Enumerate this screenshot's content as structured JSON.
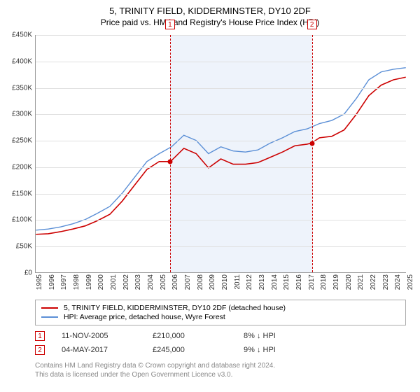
{
  "title_line1": "5, TRINITY FIELD, KIDDERMINSTER, DY10 2DF",
  "title_line2": "Price paid vs. HM Land Registry's House Price Index (HPI)",
  "chart": {
    "type": "line",
    "background_color": "#ffffff",
    "grid_color": "#e0e0e0",
    "axis_color": "#999999",
    "band_color": "#eef3fb",
    "ylim": [
      0,
      450000
    ],
    "ytick_step": 50000,
    "ylabels": [
      "£0",
      "£50K",
      "£100K",
      "£150K",
      "£200K",
      "£250K",
      "£300K",
      "£350K",
      "£400K",
      "£450K"
    ],
    "xlim": [
      1995,
      2025
    ],
    "xtick_step": 1,
    "xlabels": [
      "1995",
      "1996",
      "1997",
      "1998",
      "1999",
      "2000",
      "2001",
      "2002",
      "2003",
      "2004",
      "2005",
      "2006",
      "2007",
      "2008",
      "2009",
      "2010",
      "2011",
      "2012",
      "2013",
      "2014",
      "2015",
      "2016",
      "2017",
      "2018",
      "2019",
      "2020",
      "2021",
      "2022",
      "2023",
      "2024",
      "2025"
    ],
    "band_ranges": [
      [
        2005.86,
        2017.34
      ]
    ],
    "series": [
      {
        "name": "property",
        "label": "5, TRINITY FIELD, KIDDERMINSTER, DY10 2DF (detached house)",
        "color": "#cc0000",
        "line_width": 1.6,
        "points": [
          [
            1995,
            72000
          ],
          [
            1996,
            73000
          ],
          [
            1997,
            77000
          ],
          [
            1998,
            82000
          ],
          [
            1999,
            88000
          ],
          [
            2000,
            98000
          ],
          [
            2001,
            110000
          ],
          [
            2002,
            135000
          ],
          [
            2003,
            165000
          ],
          [
            2004,
            195000
          ],
          [
            2005,
            210000
          ],
          [
            2005.86,
            210000
          ],
          [
            2006,
            212000
          ],
          [
            2007,
            235000
          ],
          [
            2008,
            225000
          ],
          [
            2009,
            198000
          ],
          [
            2010,
            215000
          ],
          [
            2011,
            205000
          ],
          [
            2012,
            205000
          ],
          [
            2013,
            208000
          ],
          [
            2014,
            218000
          ],
          [
            2015,
            228000
          ],
          [
            2016,
            240000
          ],
          [
            2017,
            243000
          ],
          [
            2017.34,
            245000
          ],
          [
            2018,
            255000
          ],
          [
            2019,
            258000
          ],
          [
            2020,
            270000
          ],
          [
            2021,
            300000
          ],
          [
            2022,
            335000
          ],
          [
            2023,
            355000
          ],
          [
            2024,
            365000
          ],
          [
            2025,
            370000
          ]
        ]
      },
      {
        "name": "hpi",
        "label": "HPI: Average price, detached house, Wyre Forest",
        "color": "#5b8fd6",
        "line_width": 1.4,
        "points": [
          [
            1995,
            80000
          ],
          [
            1996,
            82000
          ],
          [
            1997,
            86000
          ],
          [
            1998,
            92000
          ],
          [
            1999,
            100000
          ],
          [
            2000,
            112000
          ],
          [
            2001,
            125000
          ],
          [
            2002,
            150000
          ],
          [
            2003,
            180000
          ],
          [
            2004,
            210000
          ],
          [
            2005,
            225000
          ],
          [
            2006,
            238000
          ],
          [
            2007,
            260000
          ],
          [
            2008,
            250000
          ],
          [
            2009,
            225000
          ],
          [
            2010,
            238000
          ],
          [
            2011,
            230000
          ],
          [
            2012,
            228000
          ],
          [
            2013,
            232000
          ],
          [
            2014,
            245000
          ],
          [
            2015,
            255000
          ],
          [
            2016,
            267000
          ],
          [
            2017,
            272000
          ],
          [
            2018,
            282000
          ],
          [
            2019,
            288000
          ],
          [
            2020,
            300000
          ],
          [
            2021,
            330000
          ],
          [
            2022,
            365000
          ],
          [
            2023,
            380000
          ],
          [
            2024,
            385000
          ],
          [
            2025,
            388000
          ]
        ]
      }
    ],
    "markers": [
      {
        "id": "1",
        "x": 2005.86,
        "y": 210000,
        "dot_color": "#cc0000"
      },
      {
        "id": "2",
        "x": 2017.34,
        "y": 245000,
        "dot_color": "#cc0000"
      }
    ],
    "marker_badge_border": "#cc0000",
    "marker_badge_text_color": "#cc0000",
    "xlabel_fontsize": 10,
    "ylabel_fontsize": 10
  },
  "legend": {
    "items": [
      {
        "color": "#cc0000",
        "label": "5, TRINITY FIELD, KIDDERMINSTER, DY10 2DF (detached house)"
      },
      {
        "color": "#5b8fd6",
        "label": "HPI: Average price, detached house, Wyre Forest"
      }
    ]
  },
  "sales": [
    {
      "id": "1",
      "date": "11-NOV-2005",
      "price": "£210,000",
      "diff": "8% ↓ HPI"
    },
    {
      "id": "2",
      "date": "04-MAY-2017",
      "price": "£245,000",
      "diff": "9% ↓ HPI"
    }
  ],
  "attribution_line1": "Contains HM Land Registry data © Crown copyright and database right 2024.",
  "attribution_line2": "This data is licensed under the Open Government Licence v3.0."
}
